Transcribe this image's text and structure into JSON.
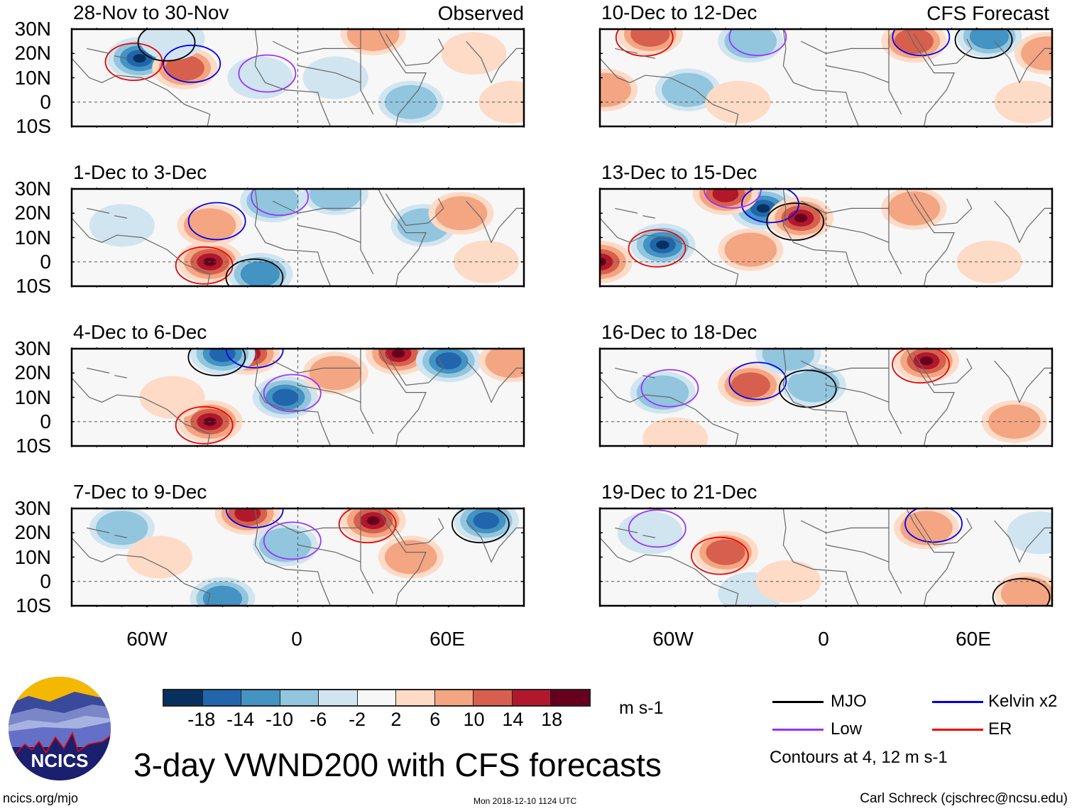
{
  "title": "3-day VWND200 with CFS forecasts",
  "columns": [
    {
      "tag": "Observed"
    },
    {
      "tag": "CFS Forecast"
    }
  ],
  "panels": [
    {
      "id": "p1",
      "column": 0,
      "row": 0,
      "label": "28-Nov to 30-Nov"
    },
    {
      "id": "p2",
      "column": 0,
      "row": 1,
      "label": "1-Dec to 3-Dec"
    },
    {
      "id": "p3",
      "column": 0,
      "row": 2,
      "label": "4-Dec to 6-Dec"
    },
    {
      "id": "p4",
      "column": 0,
      "row": 3,
      "label": "7-Dec to 9-Dec"
    },
    {
      "id": "p5",
      "column": 1,
      "row": 0,
      "label": "10-Dec to 12-Dec"
    },
    {
      "id": "p6",
      "column": 1,
      "row": 1,
      "label": "13-Dec to 15-Dec"
    },
    {
      "id": "p7",
      "column": 1,
      "row": 2,
      "label": "16-Dec to 18-Dec"
    },
    {
      "id": "p8",
      "column": 1,
      "row": 3,
      "label": "19-Dec to 21-Dec"
    }
  ],
  "axes": {
    "y_ticks": [
      "30N",
      "20N",
      "10N",
      "0",
      "10S"
    ],
    "x_ticks": [
      "60W",
      "0",
      "60E"
    ],
    "lat_range": [
      -10,
      30
    ],
    "lon_range": [
      -90,
      90
    ]
  },
  "colorbar": {
    "units": "m s-1",
    "ticks": [
      "-18",
      "-14",
      "-10",
      "-6",
      "-2",
      "2",
      "6",
      "10",
      "14",
      "18"
    ],
    "colors": [
      "#08305f",
      "#2166ac",
      "#4393c3",
      "#92c5de",
      "#d1e5f0",
      "#f7f7f7",
      "#fddbc7",
      "#f4a582",
      "#d6604d",
      "#b2182b",
      "#67001f"
    ]
  },
  "legend": {
    "items": [
      {
        "label": "MJO",
        "color": "#000000"
      },
      {
        "label": "Kelvin x2",
        "color": "#0000ee"
      },
      {
        "label": "Low",
        "color": "#9933ff"
      },
      {
        "label": "ER",
        "color": "#ee0000"
      }
    ],
    "note": "Contours at 4, 12 m s-1"
  },
  "logo": {
    "text": "NCICS"
  },
  "footer": {
    "left": "ncics.org/mjo",
    "center": "Mon 2018-12-10 1124 UTC",
    "right": "Carl Schreck (cjschrec@ncsu.edu)"
  },
  "chart_data": {
    "type": "heatmap",
    "title": "3-day VWND200 with CFS forecasts",
    "variable": "200-hPa meridional wind anomaly",
    "units": "m s-1",
    "levels": [
      -18,
      -14,
      -10,
      -6,
      -2,
      2,
      6,
      10,
      14,
      18
    ],
    "xlabel": "",
    "ylabel": "",
    "lon_range": [
      -90,
      90
    ],
    "lat_range": [
      -10,
      30
    ],
    "x_ticks": [
      "60W",
      "0",
      "60E"
    ],
    "y_ticks": [
      "30N",
      "20N",
      "10N",
      "0",
      "10S"
    ],
    "contour_levels": [
      4,
      12
    ],
    "contour_series": [
      "MJO",
      "Kelvin x2",
      "Low",
      "ER"
    ],
    "panels": [
      {
        "label": "28-Nov to 30-Nov",
        "source": "Observed",
        "features": [
          {
            "lon": -63,
            "lat": 18,
            "value": -20
          },
          {
            "lon": -45,
            "lat": 14,
            "value": 14
          },
          {
            "lon": -50,
            "lat": 26,
            "value": -4
          },
          {
            "lon": -15,
            "lat": 10,
            "value": -6
          },
          {
            "lon": 15,
            "lat": 10,
            "value": -6
          },
          {
            "lon": 45,
            "lat": 0,
            "value": -10
          },
          {
            "lon": 30,
            "lat": 28,
            "value": 8
          },
          {
            "lon": 85,
            "lat": 0,
            "value": 6
          },
          {
            "lon": 70,
            "lat": 20,
            "value": 4
          }
        ]
      },
      {
        "label": "1-Dec to 3-Dec",
        "source": "Observed",
        "features": [
          {
            "lon": -35,
            "lat": 0,
            "value": 20
          },
          {
            "lon": -35,
            "lat": 15,
            "value": 8
          },
          {
            "lon": -15,
            "lat": -5,
            "value": -14
          },
          {
            "lon": -10,
            "lat": 25,
            "value": -10
          },
          {
            "lon": 50,
            "lat": 15,
            "value": -8
          },
          {
            "lon": 65,
            "lat": 20,
            "value": 8
          },
          {
            "lon": 75,
            "lat": 0,
            "value": 6
          },
          {
            "lon": -70,
            "lat": 15,
            "value": -6
          },
          {
            "lon": 15,
            "lat": 28,
            "value": -8
          }
        ]
      },
      {
        "label": "4-Dec to 6-Dec",
        "source": "Observed",
        "features": [
          {
            "lon": -35,
            "lat": 0,
            "value": 20
          },
          {
            "lon": -20,
            "lat": 28,
            "value": 18
          },
          {
            "lon": -30,
            "lat": 28,
            "value": -18
          },
          {
            "lon": -5,
            "lat": 10,
            "value": -18
          },
          {
            "lon": 40,
            "lat": 28,
            "value": 20
          },
          {
            "lon": 60,
            "lat": 25,
            "value": -18
          },
          {
            "lon": -50,
            "lat": 10,
            "value": 6
          },
          {
            "lon": 85,
            "lat": 25,
            "value": 8
          },
          {
            "lon": 15,
            "lat": 20,
            "value": 8
          }
        ]
      },
      {
        "label": "7-Dec to 9-Dec",
        "source": "Observed",
        "features": [
          {
            "lon": 30,
            "lat": 25,
            "value": 20
          },
          {
            "lon": -20,
            "lat": 28,
            "value": 18
          },
          {
            "lon": 75,
            "lat": 25,
            "value": -18
          },
          {
            "lon": -5,
            "lat": 15,
            "value": -10
          },
          {
            "lon": -30,
            "lat": -7,
            "value": -14
          },
          {
            "lon": -70,
            "lat": 22,
            "value": -8
          },
          {
            "lon": 45,
            "lat": 10,
            "value": 10
          },
          {
            "lon": -55,
            "lat": 10,
            "value": 6
          }
        ]
      },
      {
        "label": "10-Dec to 12-Dec",
        "source": "CFS Forecast",
        "features": [
          {
            "lon": -70,
            "lat": 28,
            "value": 14
          },
          {
            "lon": 35,
            "lat": 25,
            "value": 14
          },
          {
            "lon": 65,
            "lat": 27,
            "value": -14
          },
          {
            "lon": -30,
            "lat": 25,
            "value": -8
          },
          {
            "lon": -55,
            "lat": 5,
            "value": -8
          },
          {
            "lon": -35,
            "lat": 0,
            "value": 6
          },
          {
            "lon": 88,
            "lat": 20,
            "value": 10
          },
          {
            "lon": -88,
            "lat": 5,
            "value": 8
          },
          {
            "lon": 80,
            "lat": 0,
            "value": 6
          }
        ]
      },
      {
        "label": "13-Dec to 15-Dec",
        "source": "CFS Forecast",
        "features": [
          {
            "lon": -65,
            "lat": 7,
            "value": -20
          },
          {
            "lon": -25,
            "lat": 22,
            "value": -20
          },
          {
            "lon": -10,
            "lat": 18,
            "value": 20
          },
          {
            "lon": -40,
            "lat": 28,
            "value": 16
          },
          {
            "lon": -90,
            "lat": 0,
            "value": 20
          },
          {
            "lon": 35,
            "lat": 22,
            "value": 8
          },
          {
            "lon": 65,
            "lat": 0,
            "value": 6
          },
          {
            "lon": -30,
            "lat": 5,
            "value": 10
          }
        ]
      },
      {
        "label": "16-Dec to 18-Dec",
        "source": "CFS Forecast",
        "features": [
          {
            "lon": 40,
            "lat": 25,
            "value": 22
          },
          {
            "lon": -30,
            "lat": 15,
            "value": 12
          },
          {
            "lon": -5,
            "lat": 15,
            "value": -10
          },
          {
            "lon": -65,
            "lat": 12,
            "value": -10
          },
          {
            "lon": 75,
            "lat": 0,
            "value": 8
          },
          {
            "lon": -15,
            "lat": 28,
            "value": -10
          },
          {
            "lon": -60,
            "lat": -7,
            "value": 6
          }
        ]
      },
      {
        "label": "19-Dec to 21-Dec",
        "source": "CFS Forecast",
        "features": [
          {
            "lon": -40,
            "lat": 12,
            "value": 12
          },
          {
            "lon": 40,
            "lat": 22,
            "value": 8
          },
          {
            "lon": 80,
            "lat": -5,
            "value": 10
          },
          {
            "lon": -70,
            "lat": 20,
            "value": -6
          },
          {
            "lon": -30,
            "lat": -5,
            "value": -6
          },
          {
            "lon": 85,
            "lat": 20,
            "value": -6
          },
          {
            "lon": -15,
            "lat": 0,
            "value": 4
          }
        ]
      }
    ]
  }
}
